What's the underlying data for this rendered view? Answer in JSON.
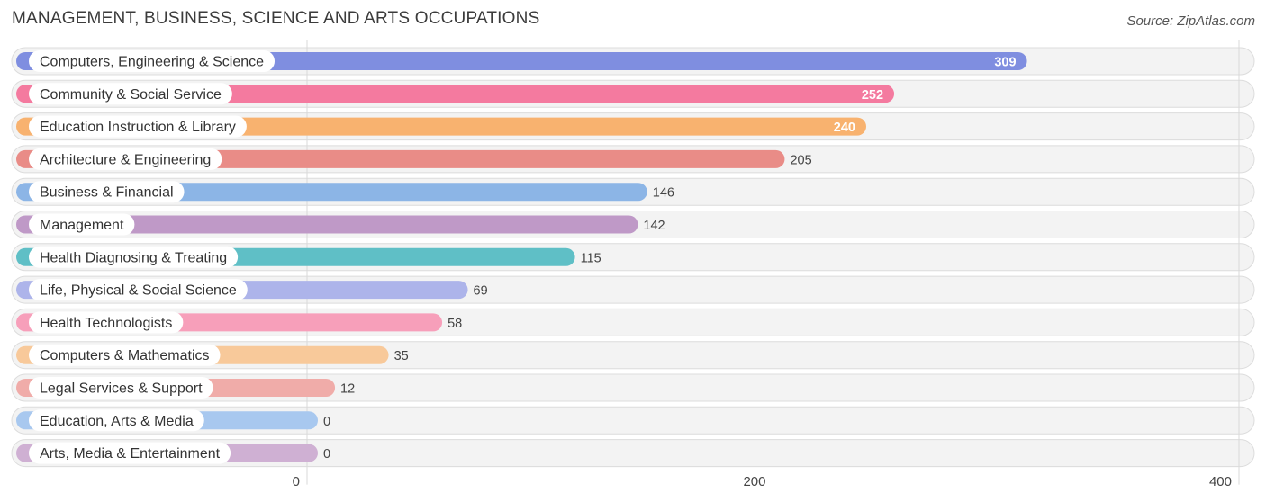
{
  "header": {
    "title": "MANAGEMENT, BUSINESS, SCIENCE AND ARTS OCCUPATIONS",
    "source": "Source: ZipAtlas.com"
  },
  "chart_data": {
    "type": "bar",
    "orientation": "horizontal",
    "categories": [
      "Computers, Engineering & Science",
      "Community & Social Service",
      "Education Instruction & Library",
      "Architecture & Engineering",
      "Business & Financial",
      "Management",
      "Health Diagnosing & Treating",
      "Life, Physical & Social Science",
      "Health Technologists",
      "Computers & Mathematics",
      "Legal Services & Support",
      "Education, Arts & Media",
      "Arts, Media & Entertainment"
    ],
    "values": [
      309,
      252,
      240,
      205,
      146,
      142,
      115,
      69,
      58,
      35,
      12,
      0,
      0
    ],
    "value_labels": [
      "309",
      "252",
      "240",
      "205",
      "146",
      "142",
      "115",
      "69",
      "58",
      "35",
      "12",
      "0",
      "0"
    ],
    "colors": [
      "#7f8ee0",
      "#f47a9f",
      "#f8b26f",
      "#e98c87",
      "#8cb5e6",
      "#bf99c7",
      "#5fbfc6",
      "#adb4ea",
      "#f79fba",
      "#f8c99a",
      "#f0aca9",
      "#a8c8ef",
      "#cfb0d3"
    ],
    "xticks": [
      "0",
      "200",
      "400"
    ],
    "tick_values": [
      0,
      200,
      400
    ],
    "xlim": [
      0,
      400
    ],
    "grid": true,
    "legend": "none"
  }
}
